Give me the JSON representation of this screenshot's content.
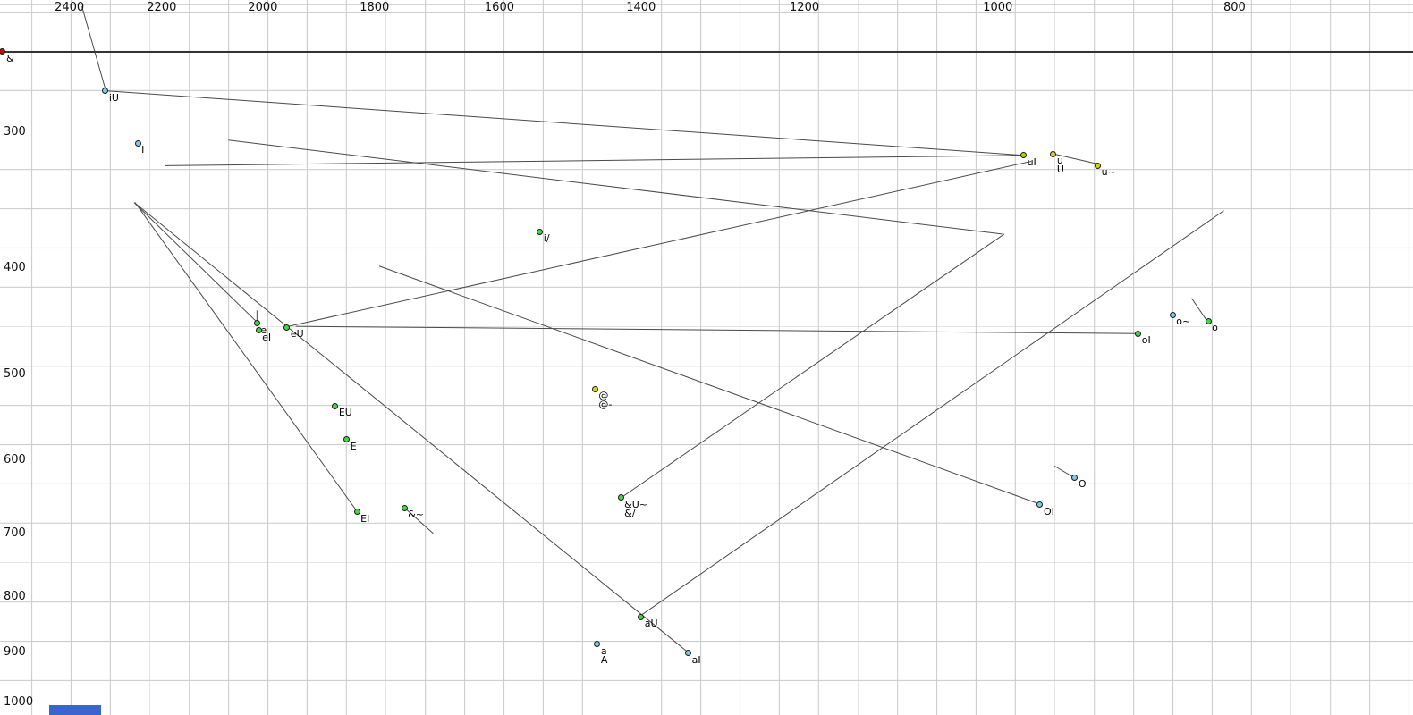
{
  "colors": {
    "blue": "#7ec8e8",
    "green": "#43d643",
    "yellow": "#d6d600",
    "yellowgreen": "#a8d400",
    "red": "#d40000",
    "line": "#4a4a4a",
    "grid": "#cdcdcd",
    "reference_line": "#333333",
    "bottom_bar": "#3a66cc"
  },
  "chart_data": {
    "type": "scatter",
    "title": "",
    "xlabel": "",
    "ylabel": "",
    "x_axis": {
      "scale": "log",
      "reversed": true,
      "ticks": [
        2400,
        2200,
        2000,
        1800,
        1600,
        1400,
        1200,
        1000,
        800
      ]
    },
    "y_axis": {
      "scale": "log",
      "ticks": [
        300,
        400,
        500,
        600,
        700,
        800,
        900,
        1000
      ]
    },
    "grid": true,
    "reference_line_f1": 253,
    "points": [
      {
        "label": "&",
        "f2": 2556,
        "f1": 253,
        "color": "red"
      },
      {
        "label": "iU",
        "f2": 2320,
        "f1": 275,
        "color": "blue"
      },
      {
        "label": "I",
        "f2": 2250,
        "f1": 307,
        "color": "blue"
      },
      {
        "label": "uI",
        "f2": 976,
        "f1": 315,
        "color": "yellowgreen"
      },
      {
        "label": "u",
        "label2": "U",
        "f2": 949,
        "f1": 314,
        "color": "yellow"
      },
      {
        "label": "u~",
        "f2": 910,
        "f1": 322,
        "color": "yellow"
      },
      {
        "label": "i/",
        "f2": 1540,
        "f1": 370,
        "color": "green"
      },
      {
        "label": "e",
        "f2": 2011,
        "f1": 449,
        "color": "green"
      },
      {
        "label": "eI",
        "f2": 2008,
        "f1": 456,
        "color": "green"
      },
      {
        "label": "eU",
        "f2": 1955,
        "f1": 453,
        "color": "green"
      },
      {
        "label": "EU",
        "f2": 1868,
        "f1": 535,
        "color": "green"
      },
      {
        "label": "E",
        "f2": 1848,
        "f1": 574,
        "color": "green"
      },
      {
        "label": "EI",
        "f2": 1830,
        "f1": 669,
        "color": "green"
      },
      {
        "label": "&~",
        "f2": 1750,
        "f1": 663,
        "color": "green"
      },
      {
        "label": "@",
        "label2": "@-",
        "f2": 1462,
        "f1": 516,
        "color": "yellow"
      },
      {
        "label": "&U~",
        "label2": "&/",
        "f2": 1427,
        "f1": 649,
        "color": "green"
      },
      {
        "label": "oI",
        "f2": 876,
        "f1": 459,
        "color": "green"
      },
      {
        "label": "o~",
        "f2": 848,
        "f1": 441,
        "color": "blue"
      },
      {
        "label": "o",
        "f2": 820,
        "f1": 447,
        "color": "green"
      },
      {
        "label": "O",
        "f2": 930,
        "f1": 622,
        "color": "blue"
      },
      {
        "label": "OI",
        "f2": 961,
        "f1": 659,
        "color": "blue"
      },
      {
        "label": "aU",
        "f2": 1400,
        "f1": 835,
        "color": "green"
      },
      {
        "label": "a",
        "label2": "A",
        "f2": 1459,
        "f1": 884,
        "color": "blue"
      },
      {
        "label": "aI",
        "f2": 1339,
        "f1": 901,
        "color": "blue"
      }
    ],
    "trajectories": [
      [
        [
          2372,
          230
        ],
        [
          2320,
          274
        ]
      ],
      [
        [
          2314,
          275
        ],
        [
          976,
          315
        ]
      ],
      [
        [
          976,
          315
        ],
        [
          2193,
          322
        ]
      ],
      [
        [
          2066,
          305
        ],
        [
          996,
          372
        ]
      ],
      [
        [
          2258,
          348
        ],
        [
          2011,
          448
        ]
      ],
      [
        [
          2256,
          348
        ],
        [
          1830,
          668
        ]
      ],
      [
        [
          2254,
          349
        ],
        [
          1339,
          900
        ]
      ],
      [
        [
          1952,
          452
        ],
        [
          969,
          319
        ]
      ],
      [
        [
          1425,
          648
        ],
        [
          994,
          372
        ]
      ],
      [
        [
          1401,
          833
        ],
        [
          808,
          354
        ]
      ],
      [
        [
          876,
          459
        ],
        [
          1939,
          452
        ]
      ],
      [
        [
          961,
          658
        ],
        [
          1792,
          398
        ]
      ],
      [
        [
          2011,
          449
        ],
        [
          2011,
          437
        ]
      ],
      [
        [
          1746,
          666
        ],
        [
          1703,
          700
        ]
      ],
      [
        [
          833,
          426
        ],
        [
          822,
          445
        ]
      ],
      [
        [
          948,
          607
        ],
        [
          932,
          621
        ]
      ],
      [
        [
          949,
          314
        ],
        [
          909,
          321
        ]
      ]
    ]
  }
}
